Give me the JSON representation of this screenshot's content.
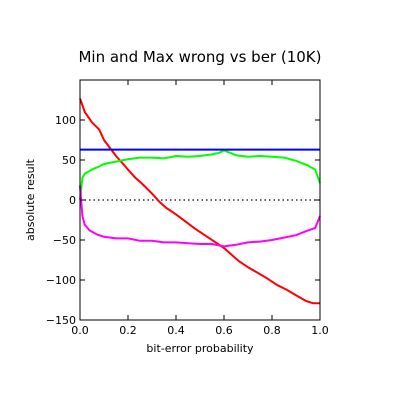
{
  "chart_data": {
    "type": "line",
    "title": "Min and Max wrong vs ber (10K)",
    "xlabel": "bit-error probability",
    "ylabel": "absolute result",
    "xlim": [
      0.0,
      1.0
    ],
    "ylim": [
      -150,
      150
    ],
    "xticks": [
      {
        "value": 0.0,
        "label": "0.0"
      },
      {
        "value": 0.2,
        "label": "0.2"
      },
      {
        "value": 0.4,
        "label": "0.4"
      },
      {
        "value": 0.6,
        "label": "0.6"
      },
      {
        "value": 0.8,
        "label": "0.8"
      },
      {
        "value": 1.0,
        "label": "1.0"
      }
    ],
    "yticks": [
      {
        "value": 100,
        "label": "100"
      },
      {
        "value": 50,
        "label": "50"
      },
      {
        "value": 0,
        "label": "0"
      },
      {
        "value": -50,
        "label": "−50"
      },
      {
        "value": -100,
        "label": "−100"
      },
      {
        "value": -150,
        "label": "−150"
      }
    ],
    "grid": false,
    "zero_line": {
      "y": 0,
      "style": "dotted",
      "color": "#000000"
    },
    "series": [
      {
        "color": "#ff0000",
        "x": [
          0.0,
          0.02,
          0.05,
          0.08,
          0.1,
          0.12,
          0.15,
          0.18,
          0.2,
          0.23,
          0.26,
          0.3,
          0.33,
          0.36,
          0.4,
          0.44,
          0.48,
          0.52,
          0.56,
          0.6,
          0.63,
          0.66,
          0.7,
          0.74,
          0.78,
          0.82,
          0.86,
          0.9,
          0.94,
          0.97,
          1.0
        ],
        "y": [
          127,
          110,
          97,
          88,
          75,
          67,
          55,
          45,
          38,
          28,
          20,
          8,
          -2,
          -10,
          -18,
          -27,
          -36,
          -44,
          -52,
          -60,
          -68,
          -76,
          -84,
          -91,
          -98,
          -106,
          -112,
          -119,
          -126,
          -129,
          -129
        ]
      },
      {
        "color": "#00ff00",
        "x": [
          0.0,
          0.01,
          0.02,
          0.05,
          0.08,
          0.1,
          0.15,
          0.2,
          0.25,
          0.3,
          0.35,
          0.4,
          0.45,
          0.5,
          0.55,
          0.58,
          0.6,
          0.65,
          0.7,
          0.75,
          0.8,
          0.85,
          0.9,
          0.95,
          0.98,
          1.0
        ],
        "y": [
          0,
          28,
          33,
          38,
          42,
          45,
          48,
          51,
          53,
          53,
          52,
          55,
          54,
          55,
          57,
          59,
          62,
          56,
          54,
          55,
          54,
          53,
          49,
          43,
          38,
          21
        ]
      },
      {
        "color": "#ff00ff",
        "x": [
          0.0,
          0.01,
          0.02,
          0.04,
          0.07,
          0.1,
          0.15,
          0.2,
          0.25,
          0.3,
          0.35,
          0.4,
          0.45,
          0.5,
          0.55,
          0.6,
          0.65,
          0.7,
          0.75,
          0.8,
          0.85,
          0.9,
          0.95,
          0.98,
          1.0
        ],
        "y": [
          18,
          -20,
          -31,
          -38,
          -43,
          -46,
          -48,
          -48,
          -51,
          -51,
          -53,
          -53,
          -54,
          -55,
          -55,
          -58,
          -56,
          -53,
          -52,
          -50,
          -47,
          -44,
          -38,
          -35,
          -20
        ]
      },
      {
        "color": "#0000ff",
        "x": [
          0.0,
          1.0
        ],
        "y": [
          63,
          63
        ]
      }
    ]
  }
}
